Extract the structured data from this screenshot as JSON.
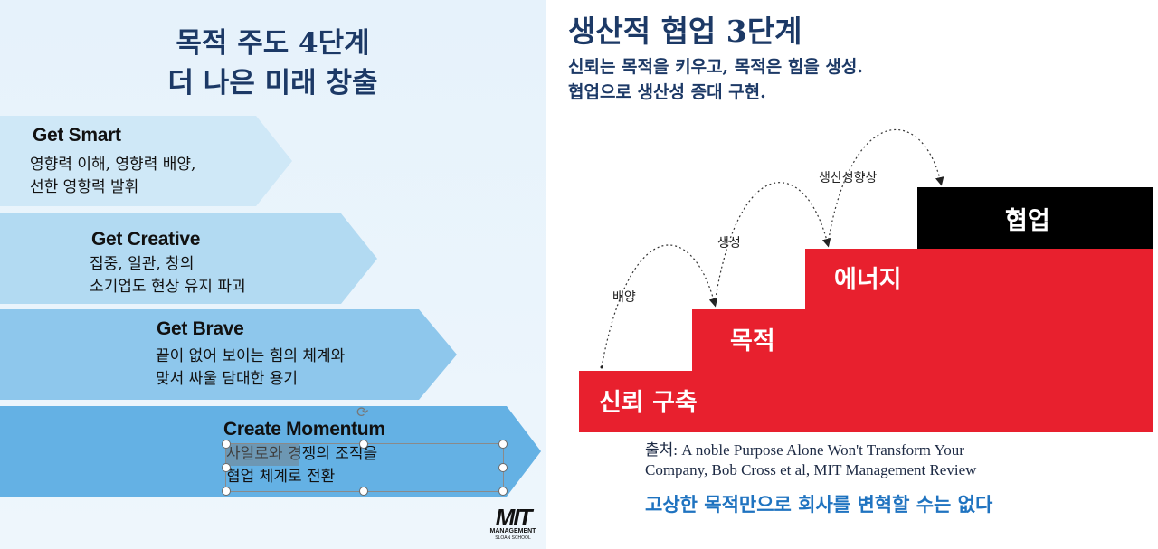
{
  "left_panel": {
    "title_lines": [
      "목적 주도 4단계",
      "더 나은 미래 창출"
    ],
    "steps": [
      {
        "heading": "Get Smart",
        "lines": [
          "영향력 이해, 영향력 배양,",
          "선한 영향력 발휘"
        ],
        "color": "#cfe8f7"
      },
      {
        "heading": "Get Creative",
        "lines": [
          "집중, 일관, 창의",
          "소기업도 현상 유지 파괴"
        ],
        "color": "#b2daf2"
      },
      {
        "heading": "Get Brave",
        "lines": [
          "끝이 없어 보이는 힘의 체계와",
          "맞서 싸울 담대한 용기"
        ],
        "color": "#8ec7ec"
      },
      {
        "heading": "Create Momentum",
        "lines": [
          "사일로와 경쟁의 조직을",
          "협업 체계로 전환"
        ],
        "color": "#64b1e4"
      }
    ],
    "logo": {
      "big": "MIT",
      "line1": "MANAGEMENT",
      "line2": "SLOAN SCHOOL"
    }
  },
  "right_panel": {
    "title": "생산적 협업 3단계",
    "subtitle_lines": [
      "신뢰는 목적을 키우고, 목적은 힘을 생성.",
      "협업으로 생산성 증대 구현."
    ],
    "stair_steps": [
      "신뢰 구축",
      "목적",
      "에너지",
      "협업"
    ],
    "arc_labels": [
      "배양",
      "생성",
      "생산성향상"
    ],
    "source_lines": [
      "출처: A noble Purpose Alone Won't Transform Your",
      "Company, Bob Cross et al, MIT Management Review"
    ],
    "tagline": "고상한 목적만으로 회사를 변혁할 수는 없다",
    "colors": {
      "red": "#e8202e",
      "black": "#000000",
      "title": "#1c3966",
      "tagline": "#1f73c0"
    }
  }
}
